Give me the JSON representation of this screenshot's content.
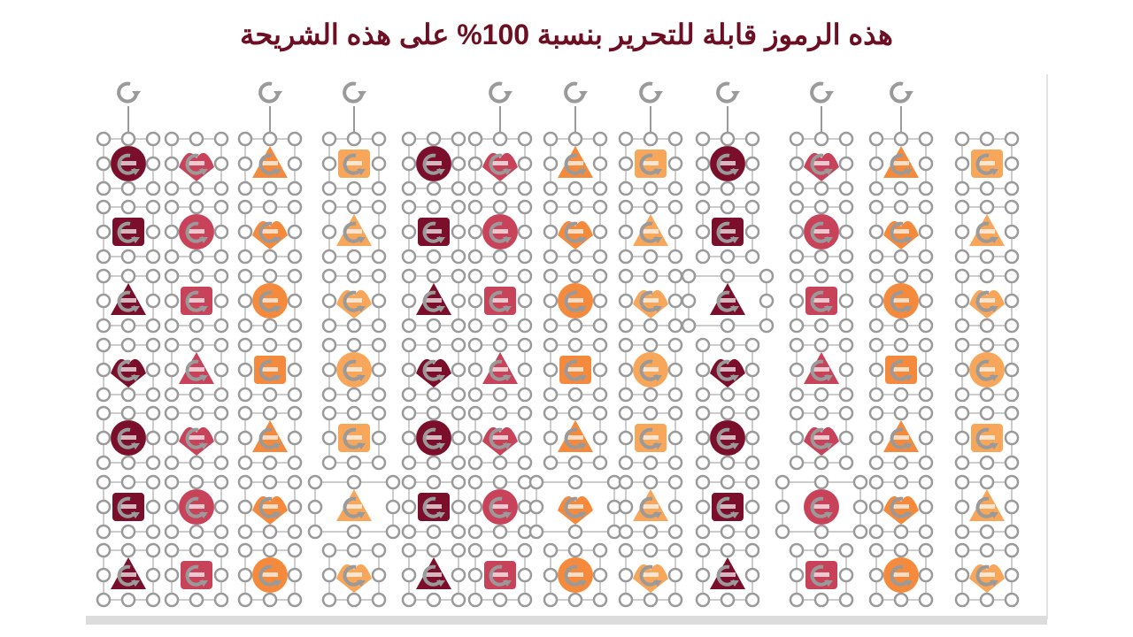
{
  "header": {
    "title": "هذه الرموز قابلة للتحرير بنسبة 100% على هذه الشريحة"
  }
}
